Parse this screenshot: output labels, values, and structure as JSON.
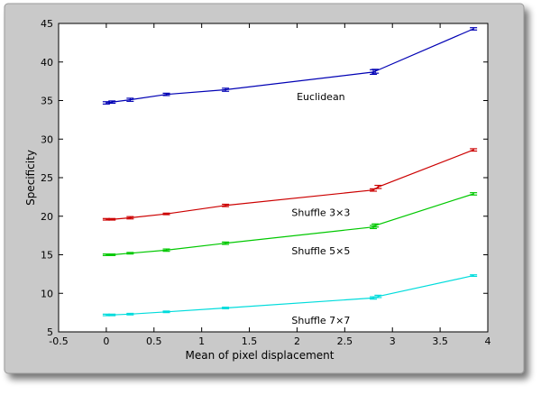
{
  "chart_data": {
    "type": "line",
    "xlabel": "Mean of pixel displacement",
    "ylabel": "Specificity",
    "xlim": [
      -0.5,
      4
    ],
    "ylim": [
      5,
      45
    ],
    "xticks": [
      -0.5,
      0,
      0.5,
      1,
      1.5,
      2,
      2.5,
      3,
      3.5,
      4
    ],
    "yticks": [
      5,
      10,
      15,
      20,
      25,
      30,
      35,
      40,
      45
    ],
    "xtick_labels": [
      "-0.5",
      "0",
      "0.5",
      "1",
      "1.5",
      "2",
      "2.5",
      "3",
      "3.5",
      "4"
    ],
    "ytick_labels": [
      "5",
      "10",
      "15",
      "20",
      "25",
      "30",
      "35",
      "40",
      "45"
    ],
    "grid": false,
    "error_bars": true,
    "series": [
      {
        "name": "Euclidean",
        "color": "#0000b4",
        "x": [
          0,
          0.06,
          0.25,
          0.63,
          1.25,
          2.8,
          2.82,
          3.85
        ],
        "y": [
          34.7,
          34.8,
          35.1,
          35.8,
          36.4,
          38.7,
          38.8,
          44.3
        ],
        "err": [
          0.15,
          0.15,
          0.2,
          0.15,
          0.2,
          0.3,
          0.25,
          0.15
        ]
      },
      {
        "name": "Shuffle 3x3",
        "color": "#cc0000",
        "x": [
          0,
          0.06,
          0.25,
          0.63,
          1.25,
          2.8,
          2.85,
          3.85
        ],
        "y": [
          19.6,
          19.6,
          19.8,
          20.3,
          21.4,
          23.4,
          23.8,
          28.6
        ],
        "err": [
          0.1,
          0.1,
          0.15,
          0.1,
          0.15,
          0.15,
          0.2,
          0.15
        ]
      },
      {
        "name": "Shuffle 5x5",
        "color": "#00c800",
        "x": [
          0,
          0.06,
          0.25,
          0.63,
          1.25,
          2.8,
          2.82,
          3.85
        ],
        "y": [
          15.0,
          15.0,
          15.2,
          15.6,
          16.5,
          18.6,
          18.8,
          22.9
        ],
        "err": [
          0.1,
          0.1,
          0.1,
          0.15,
          0.15,
          0.2,
          0.2,
          0.15
        ]
      },
      {
        "name": "Shuffle 7x7",
        "color": "#00dcdc",
        "x": [
          0,
          0.06,
          0.25,
          0.63,
          1.25,
          2.8,
          2.85,
          3.85
        ],
        "y": [
          7.2,
          7.2,
          7.3,
          7.6,
          8.1,
          9.4,
          9.6,
          12.3
        ],
        "err": [
          0.1,
          0.1,
          0.1,
          0.1,
          0.1,
          0.15,
          0.15,
          0.1
        ]
      }
    ],
    "annotations": [
      {
        "text": "Euclidean",
        "x": 2.25,
        "y": 35.5
      },
      {
        "text": "Shuffle 3×3",
        "x": 2.25,
        "y": 20.5
      },
      {
        "text": "Shuffle 5×5",
        "x": 2.25,
        "y": 15.5
      },
      {
        "text": "Shuffle 7×7",
        "x": 2.25,
        "y": 6.5
      }
    ]
  }
}
